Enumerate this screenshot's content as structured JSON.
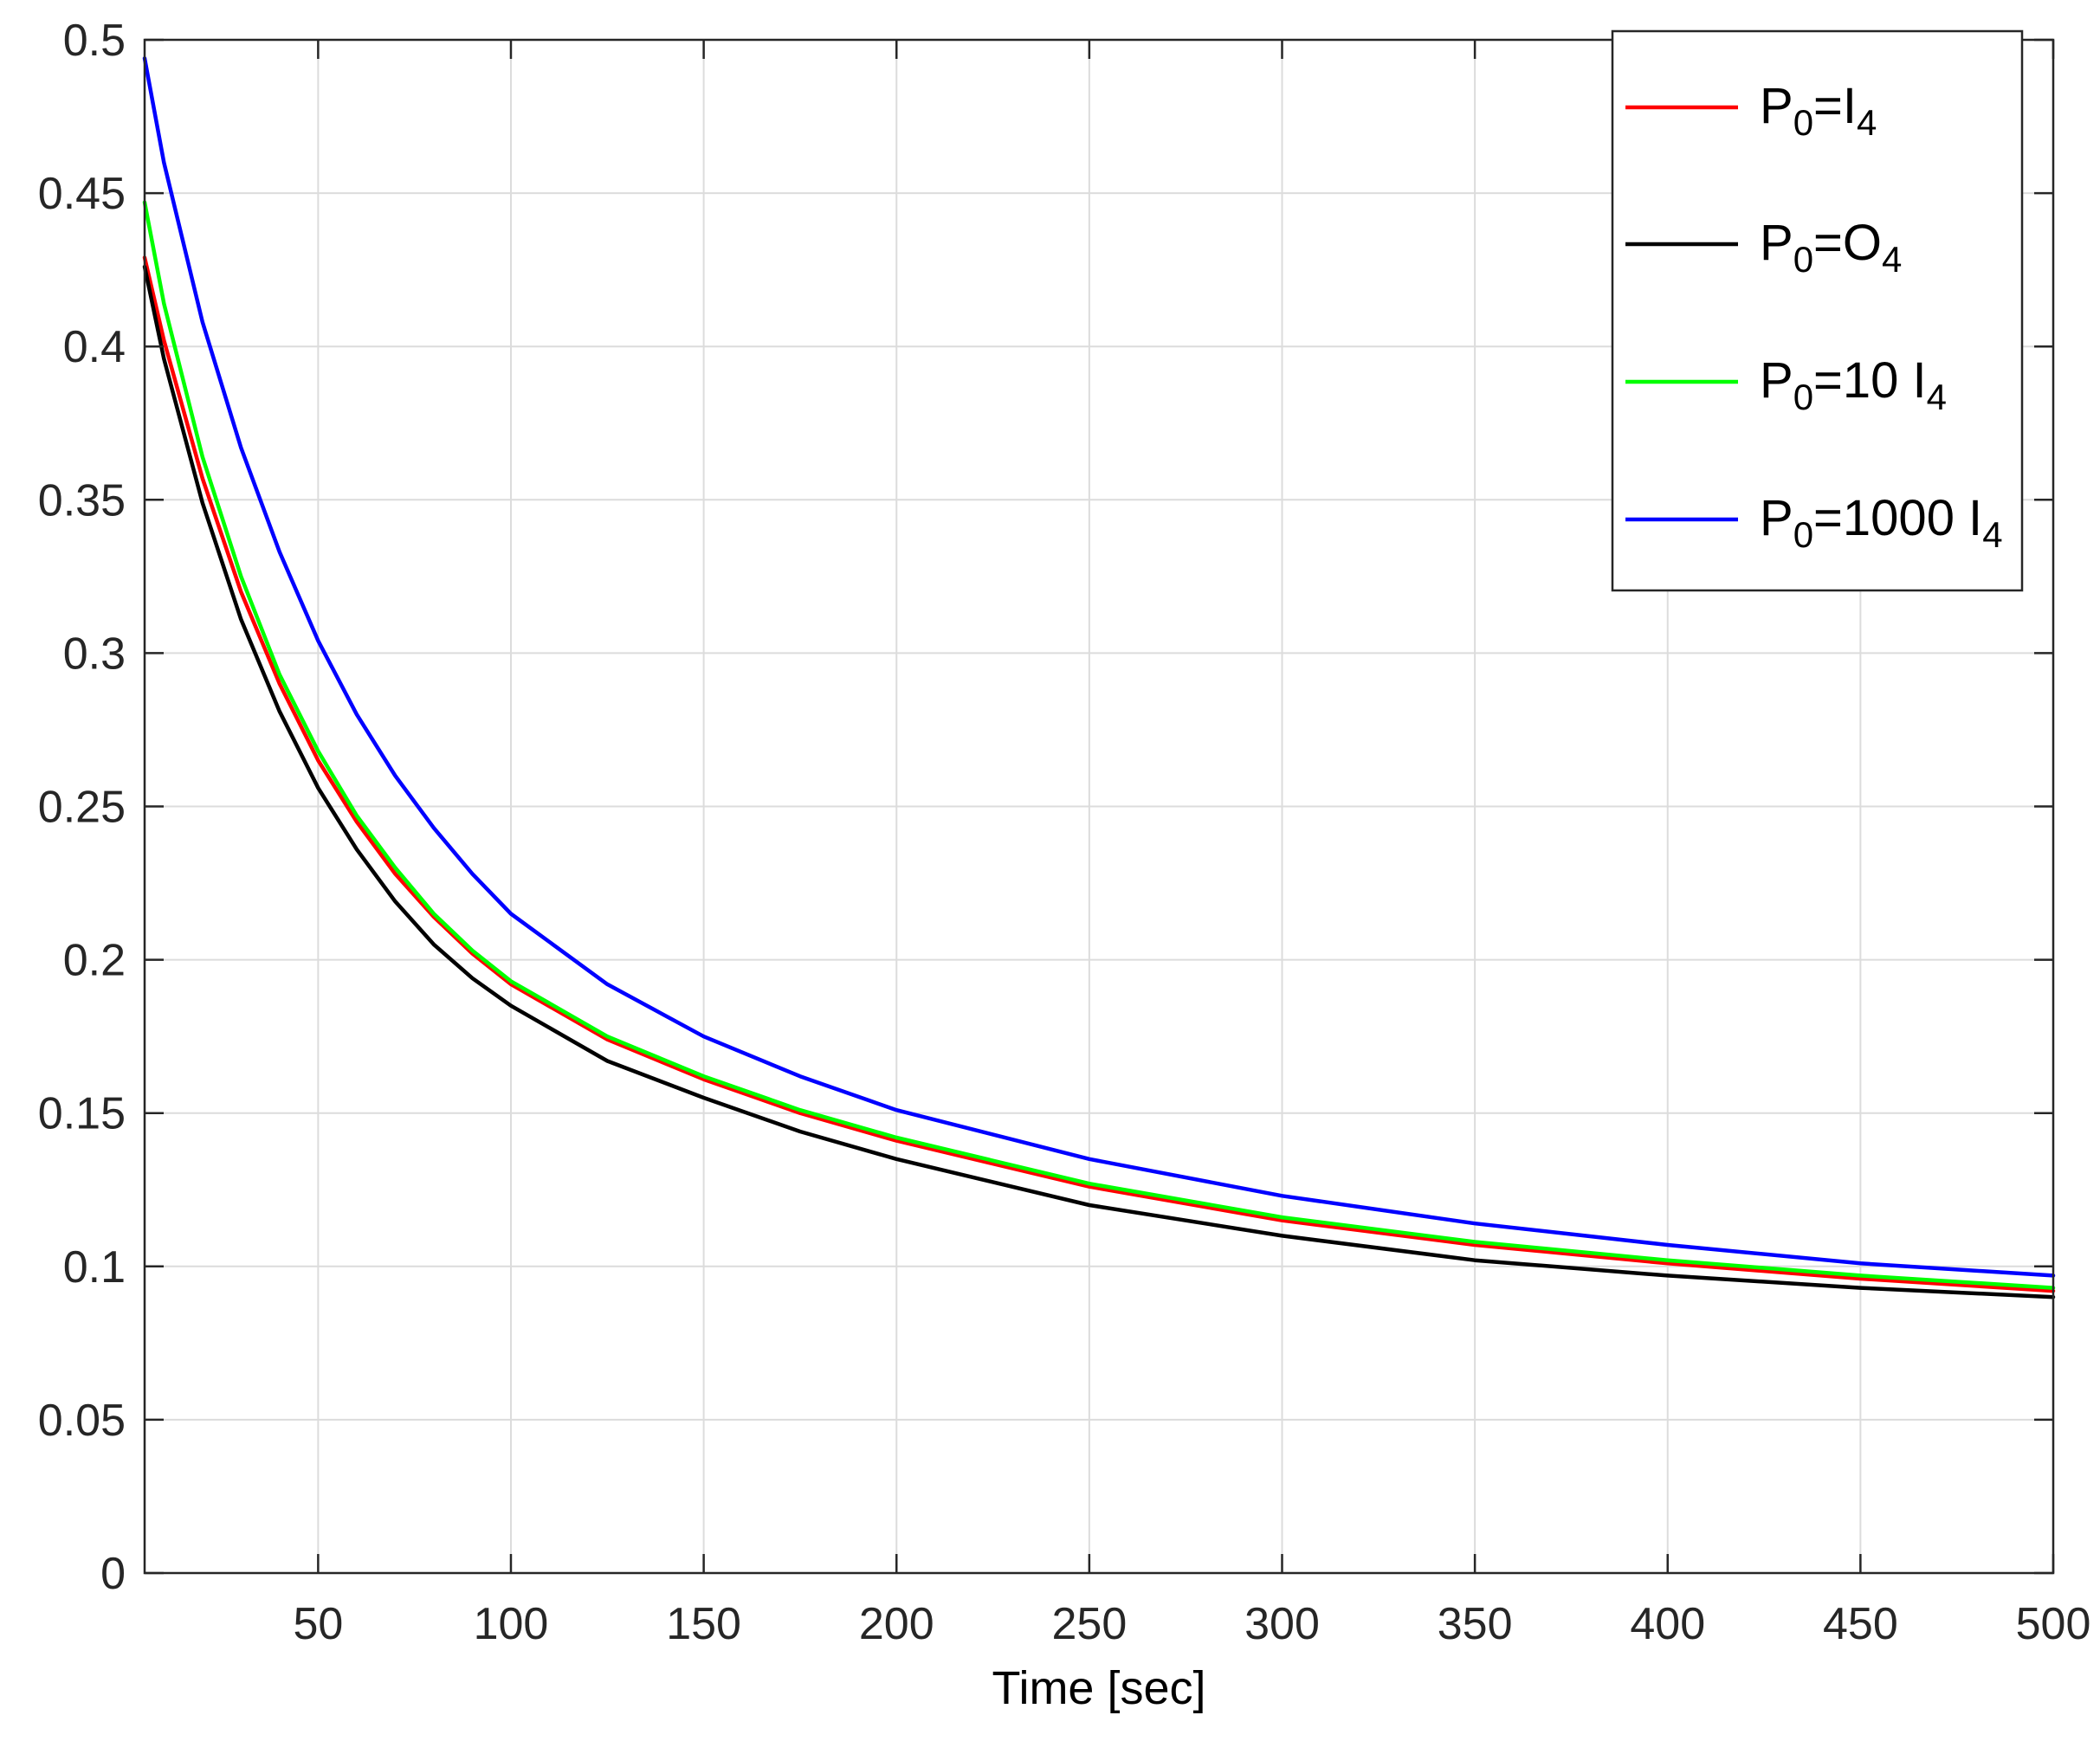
{
  "chart_data": {
    "type": "line",
    "title": "",
    "xlabel": "Time [sec]",
    "ylabel": "",
    "xlim": [
      5,
      500
    ],
    "ylim": [
      0,
      0.5
    ],
    "xticks": [
      50,
      100,
      150,
      200,
      250,
      300,
      350,
      400,
      450,
      500
    ],
    "xtick_labels": [
      "50",
      "100",
      "150",
      "200",
      "250",
      "300",
      "350",
      "400",
      "450",
      "500"
    ],
    "yticks": [
      0,
      0.05,
      0.1,
      0.15,
      0.2,
      0.25,
      0.3,
      0.35,
      0.4,
      0.45,
      0.5
    ],
    "ytick_labels": [
      "0",
      "0.05",
      "0.1",
      "0.15",
      "0.2",
      "0.25",
      "0.3",
      "0.35",
      "0.4",
      "0.45",
      "0.5"
    ],
    "grid": true,
    "legend_position": "top-right",
    "x": [
      5,
      10,
      20,
      30,
      40,
      50,
      60,
      70,
      80,
      90,
      100,
      125,
      150,
      175,
      200,
      250,
      300,
      350,
      400,
      450,
      500
    ],
    "series": [
      {
        "legend": {
          "base": "P",
          "sub1": "0",
          "mid": "=I",
          "sub2": "4"
        },
        "color": "#ff0000",
        "values": [
          0.429,
          0.402,
          0.357,
          0.32,
          0.29,
          0.265,
          0.245,
          0.228,
          0.214,
          0.202,
          0.192,
          0.174,
          0.161,
          0.15,
          0.141,
          0.126,
          0.115,
          0.107,
          0.101,
          0.096,
          0.092
        ]
      },
      {
        "legend": {
          "base": "P",
          "sub1": "0",
          "mid": "=O",
          "sub2": "4"
        },
        "color": "#000000",
        "values": [
          0.426,
          0.396,
          0.349,
          0.311,
          0.281,
          0.256,
          0.236,
          0.219,
          0.205,
          0.194,
          0.185,
          0.167,
          0.155,
          0.144,
          0.135,
          0.12,
          0.11,
          0.102,
          0.097,
          0.093,
          0.09
        ]
      },
      {
        "legend": {
          "base": "P",
          "sub1": "0",
          "mid": "=10 I",
          "sub2": "4"
        },
        "color": "#00ff00",
        "values": [
          0.447,
          0.414,
          0.364,
          0.325,
          0.293,
          0.268,
          0.247,
          0.23,
          0.215,
          0.203,
          0.193,
          0.175,
          0.162,
          0.151,
          0.142,
          0.127,
          0.116,
          0.108,
          0.102,
          0.097,
          0.093
        ]
      },
      {
        "legend": {
          "base": "P",
          "sub1": "0",
          "mid": "=1000 I",
          "sub2": "4"
        },
        "color": "#0000ff",
        "values": [
          0.494,
          0.46,
          0.408,
          0.367,
          0.333,
          0.304,
          0.28,
          0.26,
          0.243,
          0.228,
          0.215,
          0.192,
          0.175,
          0.162,
          0.151,
          0.135,
          0.123,
          0.114,
          0.107,
          0.101,
          0.097
        ]
      }
    ]
  }
}
